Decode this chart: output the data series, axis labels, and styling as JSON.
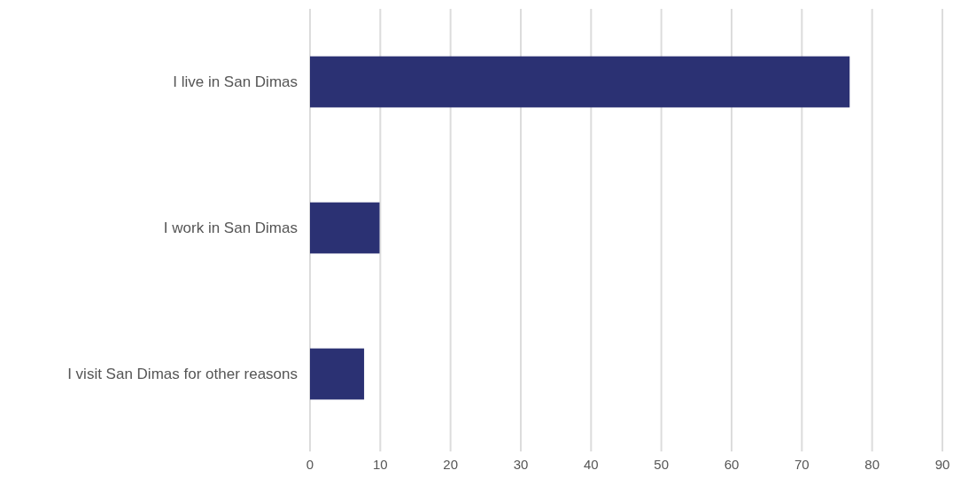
{
  "chart_data": {
    "type": "bar",
    "orientation": "horizontal",
    "categories": [
      "I live in San Dimas",
      "I work in San Dimas",
      "I visit San Dimas for other reasons"
    ],
    "values": [
      76.8,
      9.9,
      7.7
    ],
    "color": "#2b3173",
    "xlim": [
      0,
      90
    ],
    "xticks": [
      0,
      10,
      20,
      30,
      40,
      50,
      60,
      70,
      80,
      90
    ],
    "grid": "x"
  }
}
